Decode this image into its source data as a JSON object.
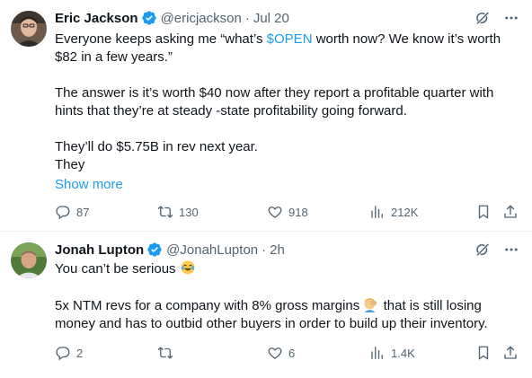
{
  "tweets": [
    {
      "author_name": "Eric Jackson",
      "handle": "@ericjackson",
      "time": "Jul 20",
      "text": {
        "line1_pre": "Everyone keeps asking me “what’s ",
        "cashtag": "$OPEN",
        "line1_post": " worth now? We know it’s worth",
        "line2": "$82 in a few years.”",
        "line3": "The answer is it’s worth $40 now after they report a profitable quarter with",
        "line4": "hints that they’re at steady -state profitability going forward.",
        "line5": "They’ll do $5.75B in rev next year.",
        "line6": "They"
      },
      "show_more": "Show more",
      "replies": "87",
      "retweets": "130",
      "likes": "918",
      "views": "212K"
    },
    {
      "author_name": "Jonah Lupton",
      "handle": "@JonahLupton",
      "time": "2h",
      "text": {
        "line1": "You can’t be serious",
        "line2": "5x NTM revs for a company with 8% gross margins",
        "line2_post": " that is still losing",
        "line3": "money and has to outbid other buyers in order to build up their inventory."
      },
      "replies": "2",
      "retweets": "",
      "likes": "6",
      "views": "1.4K"
    }
  ],
  "icons": {
    "verified": "verified-badge-icon",
    "grok": "grok-icon",
    "more": "more-icon",
    "reply": "reply-icon",
    "retweet": "retweet-icon",
    "like": "like-icon",
    "views": "views-icon",
    "bookmark": "bookmark-icon",
    "share": "share-icon"
  },
  "colors": {
    "accent": "#1d9bf0",
    "muted": "#536471",
    "text": "#0f1419"
  }
}
